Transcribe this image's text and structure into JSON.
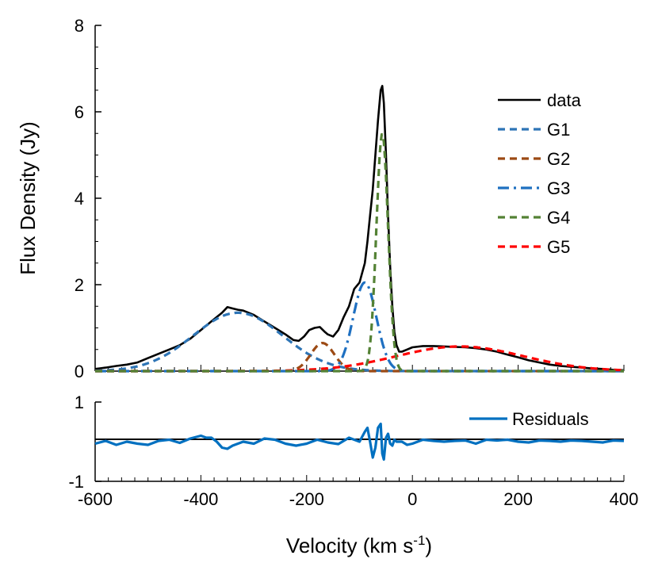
{
  "chart_data": [
    {
      "type": "line",
      "xlabel": "Velocity (km s",
      "xlabel_superscript": "-1",
      "xlabel_suffix": ")",
      "ylabel": "Flux Density (Jy)",
      "xlim": [
        -600,
        400
      ],
      "ylim": [
        0,
        8
      ],
      "x_ticks": [
        "-600",
        "-400",
        "-200",
        "0",
        "200",
        "400"
      ],
      "y_ticks": [
        "0",
        "2",
        "4",
        "6",
        "8"
      ],
      "grid": false,
      "legend_position": "top-right",
      "series": [
        {
          "name": "data",
          "color": "#000000",
          "style": "solid",
          "x": [
            -600,
            -580,
            -560,
            -540,
            -520,
            -500,
            -480,
            -460,
            -440,
            -420,
            -400,
            -380,
            -360,
            -350,
            -340,
            -330,
            -320,
            -300,
            -280,
            -260,
            -240,
            -225,
            -215,
            -205,
            -195,
            -185,
            -175,
            -165,
            -160,
            -150,
            -140,
            -130,
            -120,
            -110,
            -100,
            -90,
            -85,
            -80,
            -75,
            -70,
            -65,
            -60,
            -57,
            -54,
            -50,
            -46,
            -42,
            -38,
            -34,
            -30,
            -25,
            -20,
            -10,
            0,
            20,
            40,
            60,
            80,
            100,
            120,
            140,
            160,
            180,
            200,
            220,
            240,
            260,
            280,
            300,
            320,
            340,
            360,
            380,
            400
          ],
          "y": [
            0.05,
            0.08,
            0.12,
            0.15,
            0.2,
            0.3,
            0.4,
            0.5,
            0.6,
            0.75,
            0.95,
            1.15,
            1.35,
            1.48,
            1.45,
            1.42,
            1.4,
            1.3,
            1.15,
            1.0,
            0.85,
            0.72,
            0.7,
            0.8,
            0.95,
            1.0,
            1.02,
            0.9,
            0.85,
            0.8,
            0.95,
            1.25,
            1.5,
            1.9,
            2.05,
            2.5,
            3.0,
            3.6,
            4.2,
            5.0,
            5.8,
            6.5,
            6.6,
            6.2,
            5.0,
            3.6,
            2.4,
            1.5,
            0.9,
            0.6,
            0.45,
            0.45,
            0.5,
            0.55,
            0.58,
            0.58,
            0.57,
            0.56,
            0.55,
            0.53,
            0.5,
            0.45,
            0.38,
            0.32,
            0.25,
            0.2,
            0.15,
            0.12,
            0.1,
            0.08,
            0.06,
            0.05,
            0.03,
            0.02
          ]
        },
        {
          "name": "G1",
          "color": "#2e75b6",
          "style": "dash",
          "gaussian": {
            "amplitude": 1.35,
            "center": -330,
            "sigma": 85
          }
        },
        {
          "name": "G2",
          "color": "#9c4a14",
          "style": "dash",
          "gaussian": {
            "amplitude": 0.65,
            "center": -170,
            "sigma": 22
          }
        },
        {
          "name": "G3",
          "color": "#1f70c1",
          "style": "dashdot",
          "gaussian": {
            "amplitude": 2.05,
            "center": -90,
            "sigma": 22
          }
        },
        {
          "name": "G4",
          "color": "#548235",
          "style": "dash",
          "gaussian": {
            "amplitude": 5.5,
            "center": -57,
            "sigma": 11
          }
        },
        {
          "name": "G5",
          "color": "#ff0000",
          "style": "dash",
          "gaussian": {
            "amplitude": 0.57,
            "center": 90,
            "sigma": 120
          }
        }
      ]
    },
    {
      "type": "line",
      "xlim": [
        -600,
        400
      ],
      "ylim": [
        -1,
        1
      ],
      "y_ticks": [
        "1",
        "-1"
      ],
      "grid": false,
      "legend_position": "top-right",
      "zero_line_color": "#000000",
      "series": [
        {
          "name": "Residuals",
          "color": "#0070c0",
          "style": "solid",
          "x": [
            -600,
            -580,
            -560,
            -540,
            -520,
            -500,
            -480,
            -460,
            -440,
            -420,
            -400,
            -390,
            -380,
            -370,
            -360,
            -350,
            -340,
            -320,
            -300,
            -280,
            -260,
            -240,
            -220,
            -200,
            -180,
            -160,
            -140,
            -120,
            -110,
            -100,
            -90,
            -85,
            -80,
            -75,
            -70,
            -65,
            -60,
            -57,
            -54,
            -50,
            -46,
            -42,
            -38,
            -34,
            -30,
            -20,
            -10,
            0,
            20,
            40,
            60,
            80,
            100,
            120,
            140,
            160,
            180,
            200,
            220,
            240,
            260,
            280,
            300,
            320,
            340,
            360,
            380,
            400
          ],
          "y": [
            -0.05,
            0.02,
            -0.08,
            0.0,
            -0.05,
            -0.08,
            0.02,
            0.05,
            -0.03,
            0.08,
            0.15,
            0.1,
            0.1,
            0.0,
            -0.15,
            -0.18,
            -0.1,
            0.0,
            -0.05,
            0.08,
            0.05,
            -0.05,
            -0.1,
            -0.05,
            0.05,
            -0.02,
            -0.06,
            0.1,
            0.05,
            0.0,
            0.25,
            0.35,
            0.0,
            -0.4,
            -0.15,
            0.35,
            0.45,
            -0.3,
            -0.45,
            0.1,
            0.2,
            -0.05,
            -0.1,
            0.05,
            0.0,
            0.0,
            -0.08,
            -0.05,
            0.05,
            0.02,
            0.0,
            0.02,
            0.03,
            -0.05,
            0.05,
            0.03,
            0.05,
            0.0,
            -0.02,
            0.03,
            0.02,
            0.0,
            0.03,
            0.02,
            0.0,
            -0.02,
            0.03,
            0.02
          ]
        }
      ]
    }
  ]
}
